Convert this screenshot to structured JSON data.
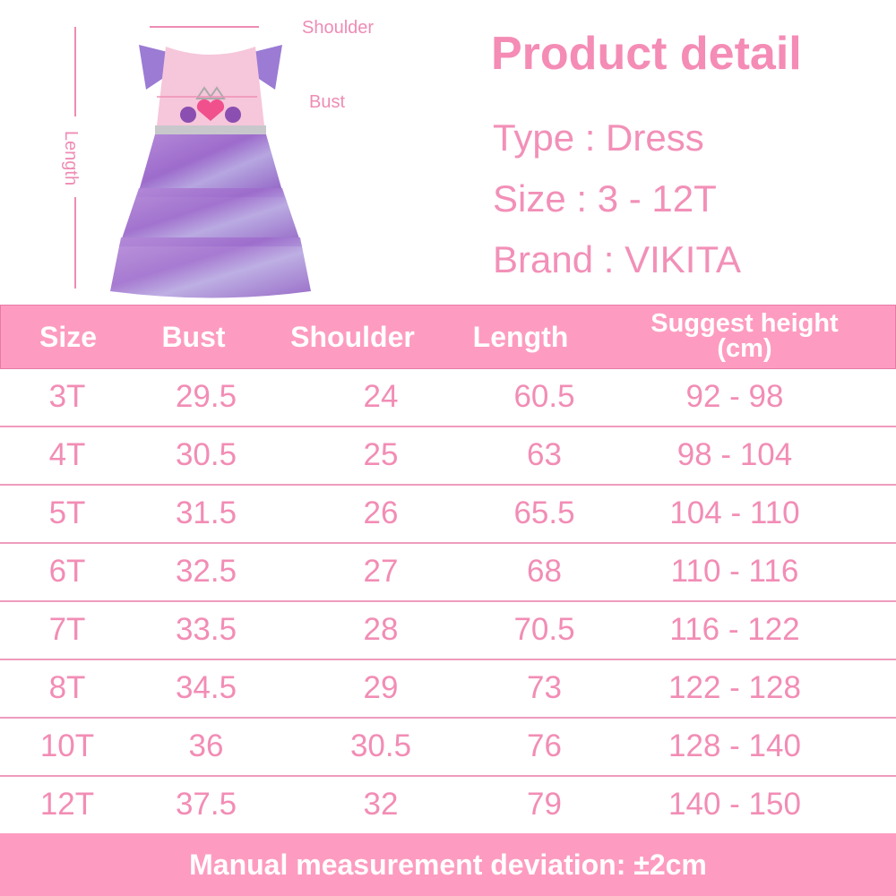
{
  "diagram": {
    "shoulder_label": "Shoulder",
    "bust_label": "Bust",
    "length_label": "Length"
  },
  "product_detail": {
    "title": "Product detail",
    "type": "Type : Dress",
    "size": "Size : 3 - 12T",
    "brand": "Brand : VIKITA"
  },
  "table": {
    "headers": [
      "Size",
      "Bust",
      "Shoulder",
      "Length",
      "Suggest height (cm)"
    ],
    "rows": [
      [
        "3T",
        "29.5",
        "24",
        "60.5",
        "92 - 98"
      ],
      [
        "4T",
        "30.5",
        "25",
        "63",
        "98 - 104"
      ],
      [
        "5T",
        "31.5",
        "26",
        "65.5",
        "104 - 110"
      ],
      [
        "6T",
        "32.5",
        "27",
        "68",
        "110 - 116"
      ],
      [
        "7T",
        "33.5",
        "28",
        "70.5",
        "116 - 122"
      ],
      [
        "8T",
        "34.5",
        "29",
        "73",
        "122 - 128"
      ],
      [
        "10T",
        "36",
        "30.5",
        "76",
        "128 - 140"
      ],
      [
        "12T",
        "37.5",
        "32",
        "79",
        "140 - 150"
      ]
    ]
  },
  "footer": "Manual measurement deviation: ±2cm",
  "colors": {
    "accent": "#fd9cc0",
    "text": "#f28db5",
    "border": "#e77aa6"
  }
}
